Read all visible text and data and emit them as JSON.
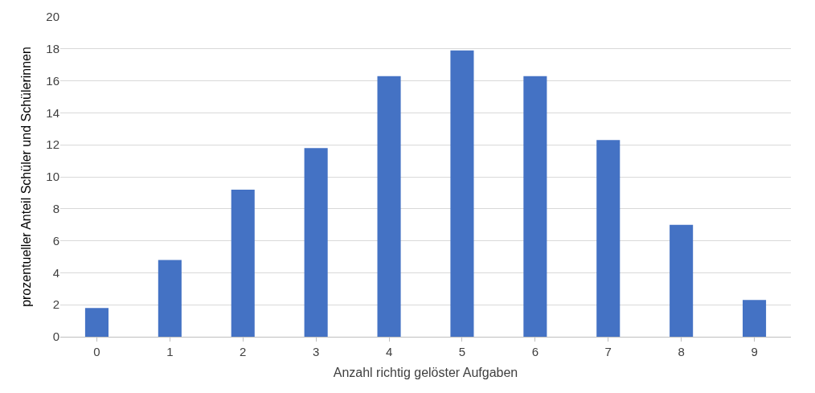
{
  "chart_data": {
    "type": "bar",
    "xlabel": "Anzahl richtig gelöster Aufgaben",
    "ylabel": "prozentueller Anteil Schüler und Schülerinnen",
    "categories": [
      "0",
      "1",
      "2",
      "3",
      "4",
      "5",
      "6",
      "7",
      "8",
      "9"
    ],
    "values": [
      1.8,
      4.8,
      9.2,
      11.8,
      16.3,
      17.9,
      16.3,
      12.3,
      7.0,
      2.3
    ],
    "color": "#4472c4",
    "ylim": [
      0,
      20
    ],
    "yticks": [
      0,
      2,
      4,
      6,
      8,
      10,
      12,
      14,
      16,
      18,
      20
    ],
    "grid": "y",
    "legend": false
  }
}
